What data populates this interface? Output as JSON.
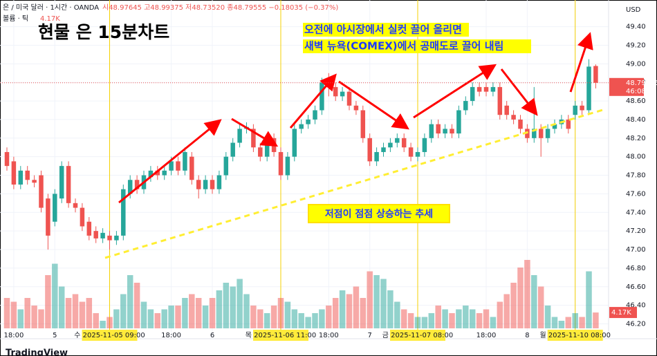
{
  "chart_data": {
    "type": "candlestick",
    "symbol": "은 / 미국 달러 · 1시간 · OANDA",
    "ohlc_line": "시48.97645 고48.99375 저48.73520 종48.79555 −0.18035 (−0.37%)",
    "title": "현물 은 15분차트",
    "annotations": [
      "오전에 아시장에서 실컷 끌어 올리면",
      "새벽 뉴욕(COMEX)에서 공매도로 끌어 내림",
      "저점이 점점 상승하는 추세"
    ],
    "currency": "USD",
    "countdown": "46:08",
    "footer": "TradingView",
    "categories": [
      null,
      "18:00",
      null,
      null,
      null,
      null,
      null,
      "5",
      null,
      null,
      null,
      null,
      null,
      null,
      null,
      "수 2025-11-05  09:00",
      null,
      null,
      null,
      null,
      null,
      null,
      null,
      null,
      "18:00",
      null,
      null,
      null,
      null,
      null,
      "6",
      null,
      null,
      null,
      null,
      null,
      null,
      null,
      null,
      null,
      "목 2025-11-06   11:00",
      null,
      null,
      null,
      null,
      null,
      null,
      "18:00",
      null,
      null,
      null,
      null,
      null,
      "7",
      null,
      null,
      null,
      null,
      null,
      null,
      "금 2025-11-07   08:00",
      null,
      null,
      null,
      null,
      null,
      null,
      null,
      null,
      null,
      "18:00",
      null,
      null,
      null,
      null,
      null,
      "8",
      null,
      null,
      null,
      null,
      null,
      null,
      "월 2025-11-10   08:00",
      null,
      null,
      null
    ],
    "highlighted_categories": [
      15,
      40,
      60,
      83
    ],
    "open": [
      48.05,
      47.95,
      47.7,
      47.85,
      47.75,
      47.8,
      47.55,
      47.3,
      47.55,
      47.9,
      47.5,
      47.45,
      47.3,
      47.2,
      47.12,
      47.15,
      47.1,
      47.15,
      47.6,
      47.75,
      47.65,
      47.78,
      47.85,
      47.8,
      47.85,
      47.95,
      47.85,
      48.0,
      47.75,
      47.65,
      47.75,
      47.65,
      47.8,
      48.0,
      48.15,
      48.3,
      48.3,
      48.1,
      48.0,
      48.2,
      48.05,
      47.8,
      48.0,
      48.3,
      48.35,
      48.4,
      48.5,
      48.8,
      48.75,
      48.65,
      48.7,
      48.55,
      48.5,
      48.2,
      47.95,
      48.05,
      48.1,
      48.15,
      48.2,
      48.1,
      48.0,
      48.05,
      48.2,
      48.35,
      48.25,
      48.3,
      48.25,
      48.5,
      48.6,
      48.75,
      48.75,
      48.7,
      48.75,
      48.55,
      48.45,
      48.4,
      48.3,
      48.2,
      48.3,
      48.2,
      48.3,
      48.35,
      48.4,
      48.45,
      48.55,
      48.5,
      48.97645
    ],
    "high": [
      48.1,
      48.0,
      47.9,
      47.9,
      47.8,
      47.85,
      47.6,
      47.65,
      47.95,
      47.95,
      47.55,
      47.5,
      47.35,
      47.25,
      47.23,
      47.2,
      47.2,
      47.7,
      47.8,
      47.8,
      47.85,
      47.9,
      47.9,
      47.9,
      48.0,
      48.0,
      48.1,
      48.05,
      47.8,
      47.8,
      47.8,
      47.85,
      48.05,
      48.2,
      48.35,
      48.37,
      48.35,
      48.15,
      48.25,
      48.25,
      48.1,
      48.05,
      48.35,
      48.4,
      48.45,
      48.55,
      48.85,
      48.9,
      48.8,
      48.75,
      48.75,
      48.6,
      48.55,
      48.25,
      48.1,
      48.15,
      48.2,
      48.25,
      48.25,
      48.15,
      48.1,
      48.25,
      48.4,
      48.4,
      48.35,
      48.35,
      48.55,
      48.65,
      48.8,
      48.8,
      48.8,
      48.8,
      48.8,
      48.6,
      48.5,
      48.45,
      48.35,
      48.75,
      48.35,
      48.35,
      48.4,
      48.45,
      48.45,
      48.6,
      48.6,
      49.05,
      48.99375
    ],
    "low": [
      47.85,
      47.65,
      47.65,
      47.7,
      47.67,
      47.4,
      47.0,
      47.25,
      47.5,
      47.45,
      47.4,
      47.2,
      47.1,
      47.07,
      47.07,
      47.0,
      47.05,
      47.1,
      47.55,
      47.6,
      47.6,
      47.73,
      47.75,
      47.75,
      47.8,
      47.8,
      47.8,
      47.7,
      47.55,
      47.6,
      47.6,
      47.6,
      47.75,
      47.95,
      48.1,
      48.25,
      48.05,
      47.95,
      47.95,
      48.0,
      47.75,
      47.75,
      47.95,
      48.25,
      48.3,
      48.35,
      48.45,
      48.65,
      48.6,
      48.6,
      48.5,
      48.45,
      48.15,
      47.9,
      47.9,
      48.0,
      48.05,
      48.1,
      48.05,
      47.95,
      47.95,
      48.0,
      48.15,
      48.2,
      48.2,
      48.2,
      48.2,
      48.45,
      48.55,
      48.65,
      48.65,
      48.65,
      48.4,
      48.4,
      48.35,
      48.25,
      48.15,
      48.15,
      48.0,
      48.15,
      48.25,
      48.3,
      48.25,
      48.4,
      48.45,
      48.45,
      48.7352
    ],
    "close": [
      47.9,
      47.7,
      47.85,
      47.75,
      47.72,
      47.45,
      47.15,
      47.6,
      47.9,
      47.5,
      47.45,
      47.25,
      47.15,
      47.12,
      47.18,
      47.1,
      47.15,
      47.65,
      47.75,
      47.65,
      47.8,
      47.85,
      47.8,
      47.85,
      47.95,
      47.85,
      48.05,
      47.75,
      47.65,
      47.75,
      47.65,
      47.8,
      48.0,
      48.15,
      48.3,
      48.32,
      48.1,
      48.0,
      48.2,
      48.05,
      47.8,
      48.0,
      48.3,
      48.35,
      48.4,
      48.5,
      48.8,
      48.75,
      48.65,
      48.7,
      48.55,
      48.5,
      48.2,
      47.95,
      48.05,
      48.1,
      48.15,
      48.2,
      48.1,
      48.0,
      48.05,
      48.2,
      48.35,
      48.25,
      48.3,
      48.25,
      48.5,
      48.6,
      48.75,
      48.7,
      48.7,
      48.75,
      48.45,
      48.45,
      48.4,
      48.3,
      48.2,
      48.3,
      48.2,
      48.3,
      48.35,
      48.4,
      48.3,
      48.55,
      48.5,
      48.97,
      48.79555
    ],
    "up_color": "#26a69a",
    "down_color": "#ef5350",
    "volume": {
      "name": "볼륨 · 틱",
      "last_label": "4.17K",
      "ylim": [
        0,
        20
      ],
      "values": [
        8,
        7,
        5,
        8,
        6,
        5,
        14,
        17,
        11,
        8,
        9,
        7,
        8,
        4,
        2,
        3,
        5,
        9,
        14,
        12,
        7,
        5,
        4,
        5,
        6,
        6,
        8,
        9,
        8,
        6,
        8,
        10,
        12,
        11,
        13,
        9,
        6,
        5,
        4,
        6,
        8,
        7,
        5,
        4,
        3,
        4,
        5,
        6,
        8,
        10,
        9,
        11,
        8,
        15,
        14,
        13,
        10,
        7,
        5,
        4,
        3,
        3,
        4,
        6,
        5,
        4,
        5,
        6,
        5,
        4,
        5,
        3,
        7,
        9,
        12,
        16,
        18,
        14,
        11,
        6,
        3,
        2,
        3,
        4,
        3,
        15,
        4.17
      ]
    },
    "ylim": [
      46.04,
      49.65
    ],
    "yticks": [
      {
        "value": 46.2,
        "label": "46.20"
      },
      {
        "value": 46.4,
        "label": "46.40"
      },
      {
        "value": 46.6,
        "label": "46.60"
      },
      {
        "value": 46.8,
        "label": "46.80"
      },
      {
        "value": 47.0,
        "label": "47.00"
      },
      {
        "value": 47.2,
        "label": "47.20"
      },
      {
        "value": 47.4,
        "label": "47.40"
      },
      {
        "value": 47.6,
        "label": "47.60"
      },
      {
        "value": 47.8,
        "label": "47.80"
      },
      {
        "value": 48.0,
        "label": "48.00"
      },
      {
        "value": 48.2,
        "label": "48.20"
      },
      {
        "value": 48.4,
        "label": "48.40"
      },
      {
        "value": 48.6,
        "label": "48.60"
      },
      {
        "value": 48.8,
        "label": "48.80"
      },
      {
        "value": 49.0,
        "label": "49.00"
      },
      {
        "value": 49.2,
        "label": "49.20"
      },
      {
        "value": 49.4,
        "label": "49.40"
      }
    ],
    "grid": true
  }
}
